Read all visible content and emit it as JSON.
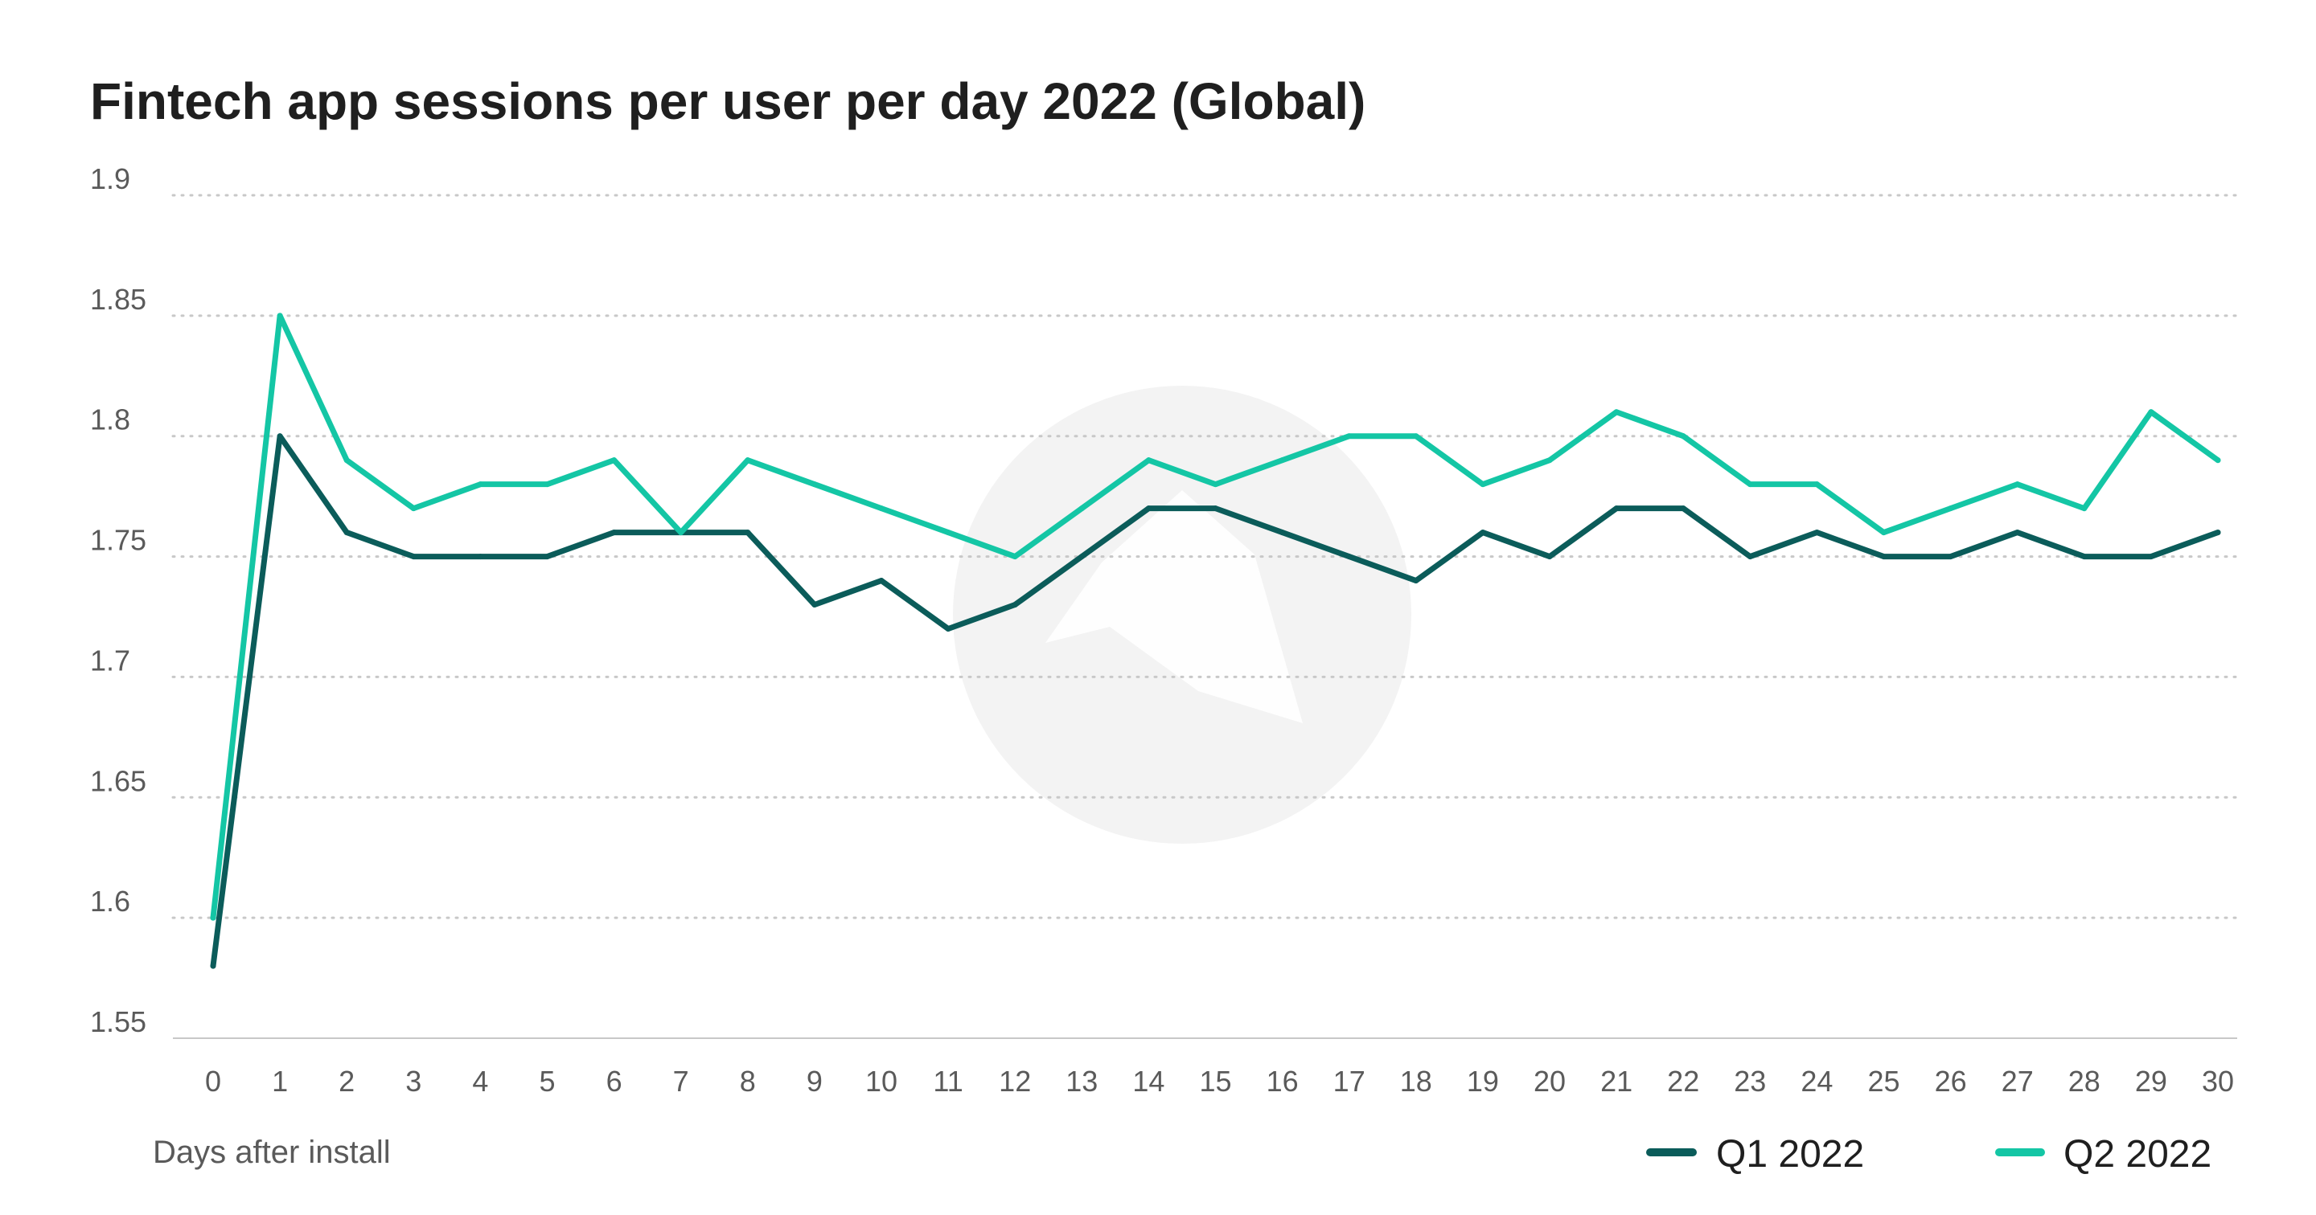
{
  "colors": {
    "q1": "#0b5c5a",
    "q2": "#14c6a5",
    "grid": "#c8c8c8",
    "watermark": "#f3f3f3"
  },
  "watermark": {
    "icon": "logo-watermark-icon"
  },
  "chart_data": {
    "type": "line",
    "title": "Fintech app sessions per user per day 2022 (Global)",
    "xlabel": "Days after install",
    "ylabel": "",
    "x": [
      0,
      1,
      2,
      3,
      4,
      5,
      6,
      7,
      8,
      9,
      10,
      11,
      12,
      13,
      14,
      15,
      16,
      17,
      18,
      19,
      20,
      21,
      22,
      23,
      24,
      25,
      26,
      27,
      28,
      29,
      30
    ],
    "xtick_labels": [
      "0",
      "1",
      "2",
      "3",
      "4",
      "5",
      "6",
      "7",
      "8",
      "9",
      "10",
      "11",
      "12",
      "13",
      "14",
      "15",
      "16",
      "17",
      "18",
      "19",
      "20",
      "21",
      "22",
      "23",
      "24",
      "25",
      "26",
      "27",
      "28",
      "29",
      "30"
    ],
    "ylim": [
      1.55,
      1.9
    ],
    "ytick_values": [
      1.55,
      1.6,
      1.65,
      1.7,
      1.75,
      1.8,
      1.85,
      1.9
    ],
    "ytick_labels": [
      "1.55",
      "1.6",
      "1.65",
      "1.7",
      "1.75",
      "1.8",
      "1.85",
      "1.9"
    ],
    "grid": true,
    "legend_position": "bottom-right",
    "series": [
      {
        "name": "Q1 2022",
        "color_key": "q1",
        "values": [
          1.58,
          1.8,
          1.76,
          1.75,
          1.75,
          1.75,
          1.76,
          1.76,
          1.76,
          1.73,
          1.74,
          1.72,
          1.73,
          1.75,
          1.77,
          1.77,
          1.76,
          1.75,
          1.74,
          1.76,
          1.75,
          1.77,
          1.77,
          1.75,
          1.76,
          1.75,
          1.75,
          1.76,
          1.75,
          1.75,
          1.76
        ]
      },
      {
        "name": "Q2 2022",
        "color_key": "q2",
        "values": [
          1.6,
          1.85,
          1.79,
          1.77,
          1.78,
          1.78,
          1.79,
          1.76,
          1.79,
          1.78,
          1.77,
          1.76,
          1.75,
          1.77,
          1.79,
          1.78,
          1.79,
          1.8,
          1.8,
          1.78,
          1.79,
          1.81,
          1.8,
          1.78,
          1.78,
          1.76,
          1.77,
          1.78,
          1.77,
          1.81,
          1.79
        ]
      }
    ]
  }
}
